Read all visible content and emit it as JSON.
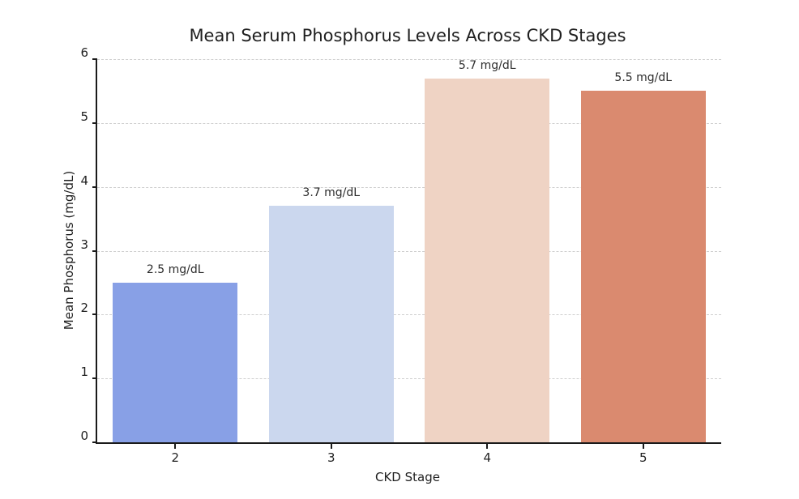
{
  "chart_data": {
    "type": "bar",
    "title": "Mean Serum Phosphorus Levels Across CKD Stages",
    "xlabel": "CKD Stage",
    "ylabel": "Mean Phosphorus (mg/dL)",
    "categories": [
      "2",
      "3",
      "4",
      "5"
    ],
    "values": [
      2.5,
      3.7,
      5.7,
      5.5
    ],
    "bar_labels": [
      "2.5 mg/dL",
      "3.7 mg/dL",
      "5.7 mg/dL",
      "5.5 mg/dL"
    ],
    "bar_colors": [
      "#88A0E6",
      "#CBD7EE",
      "#EFD3C4",
      "#DA8A6F"
    ],
    "ylim": [
      0,
      6
    ],
    "yticks": [
      0,
      1,
      2,
      3,
      4,
      5,
      6
    ],
    "grid": "horizontal-dashed",
    "grid_color": "#cfcfcf",
    "axis_color": "#1a1a1a",
    "legend": "none",
    "bar_width_fraction": 0.8
  }
}
